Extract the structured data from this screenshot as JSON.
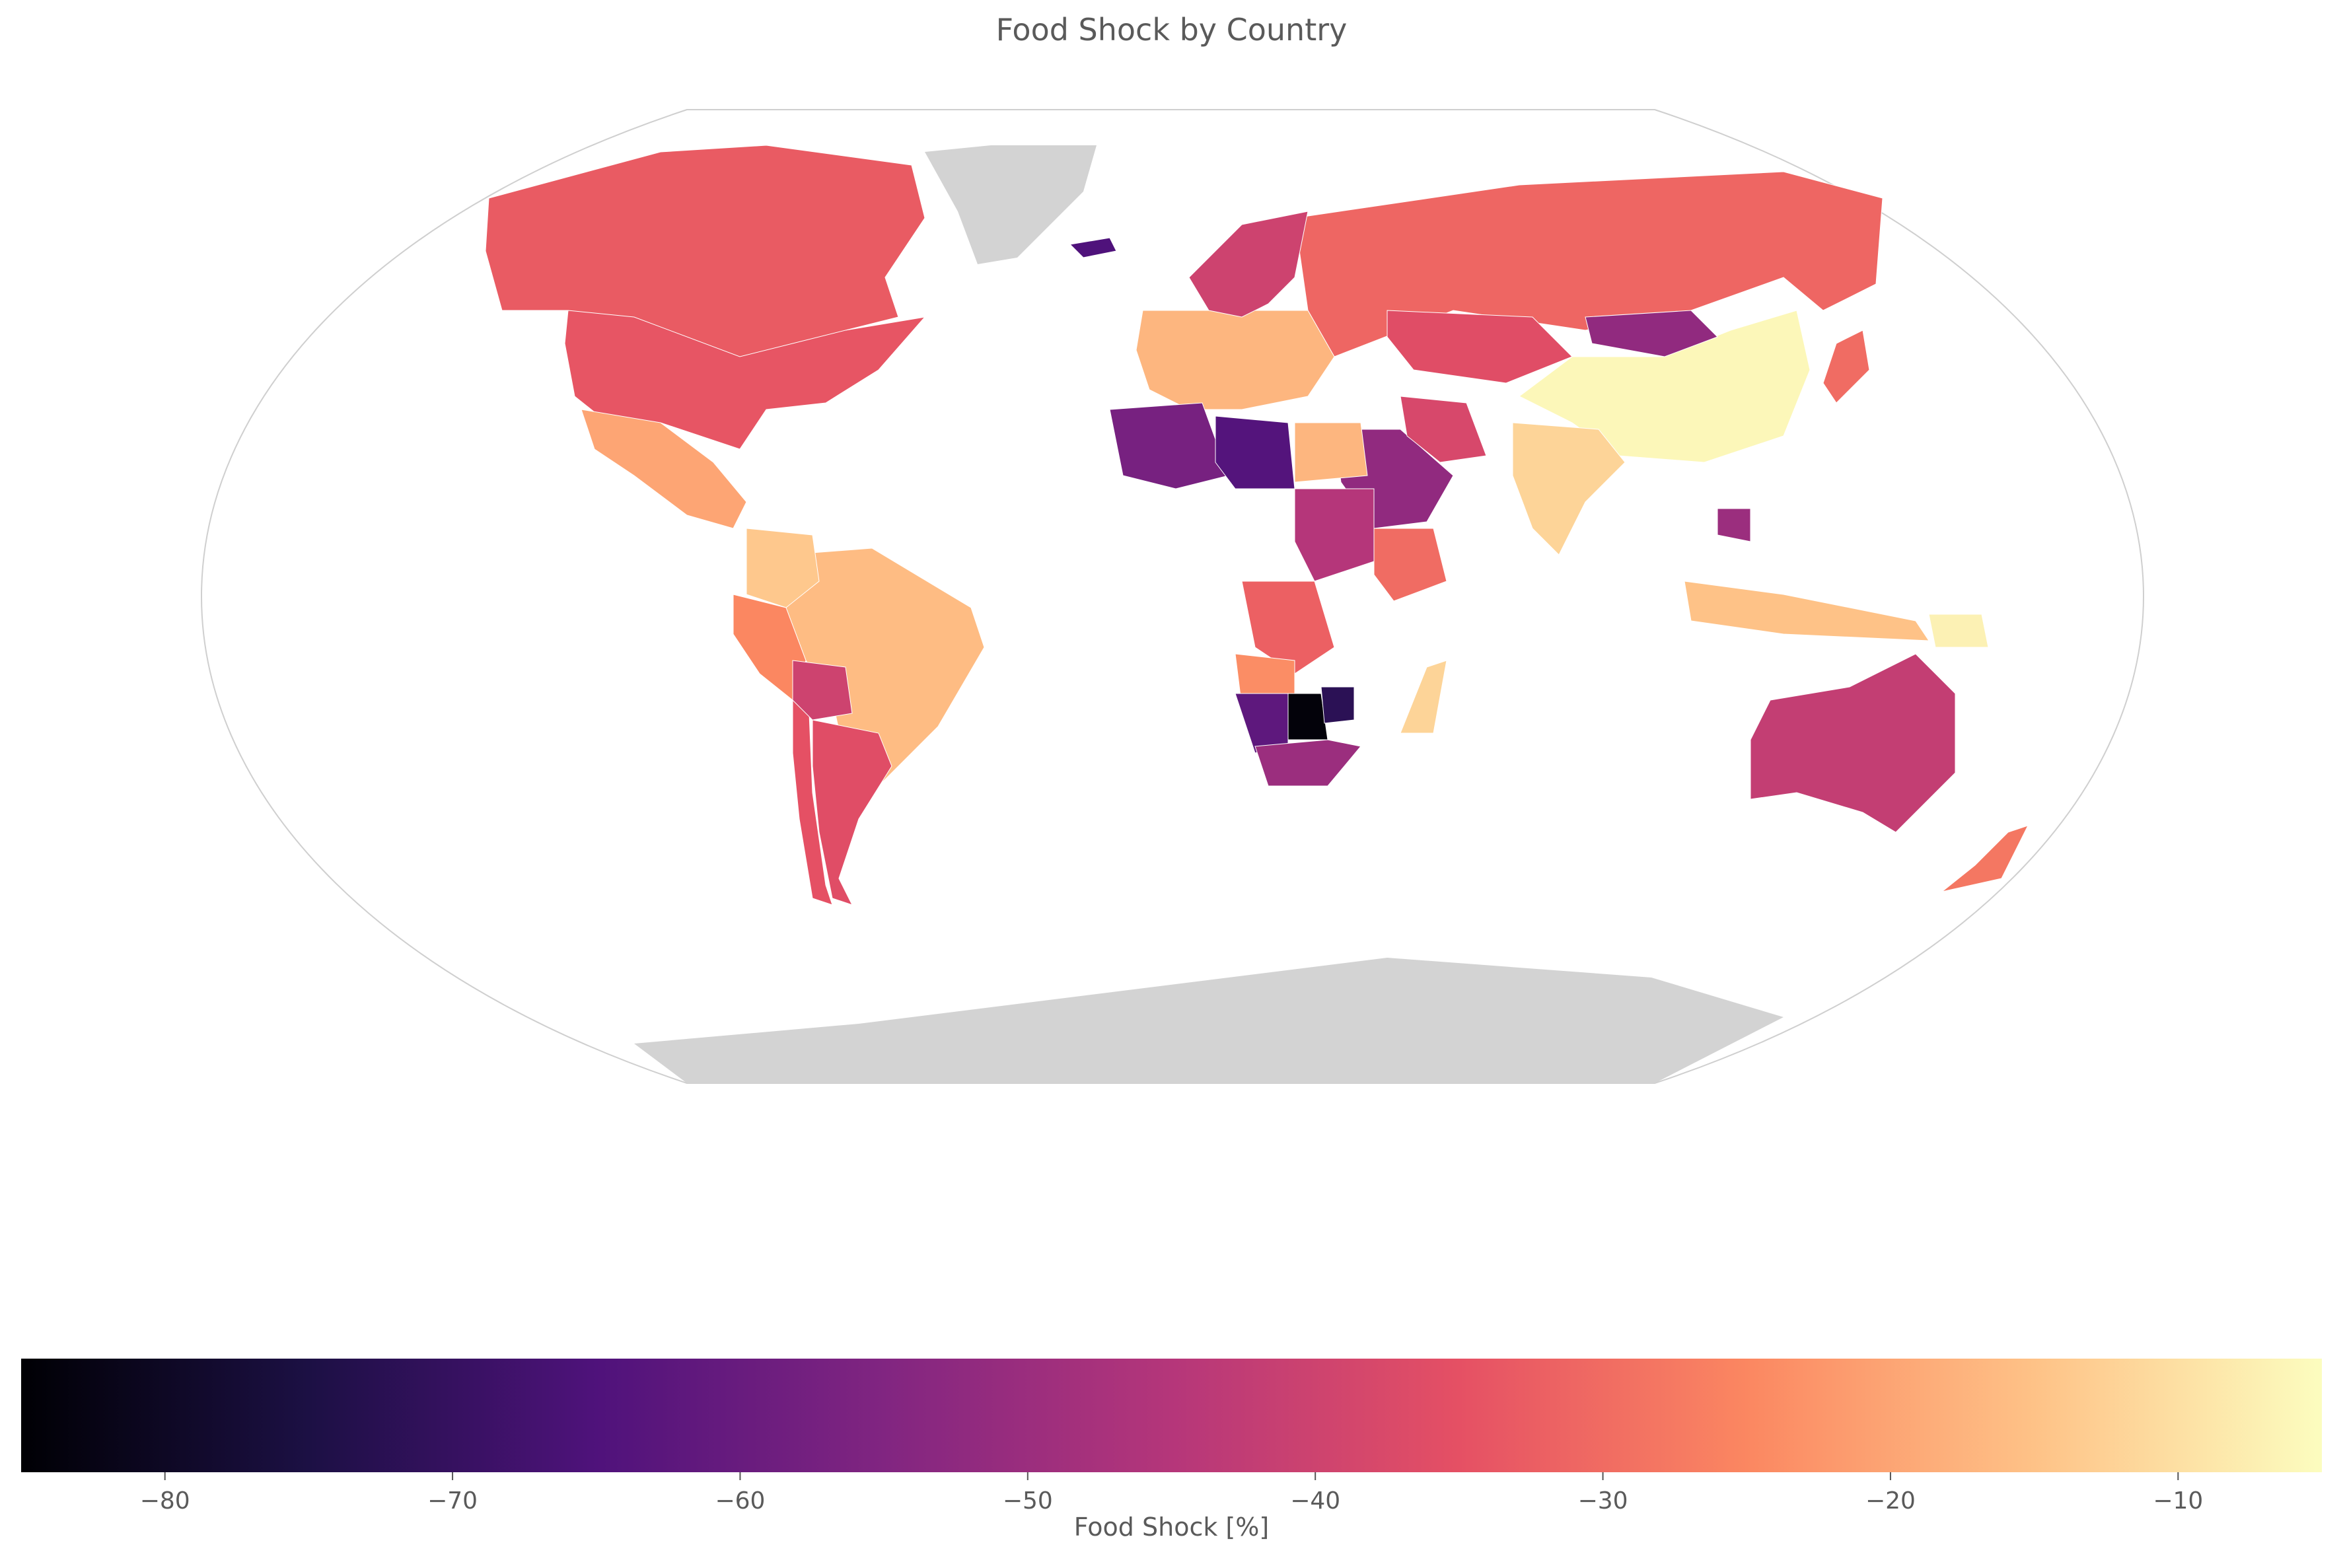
{
  "title": "Food Shock by Country",
  "colorbar": {
    "label": "Food Shock [%]",
    "min": -85,
    "max": -5,
    "ticks": [
      -80,
      -70,
      -60,
      -50,
      -40,
      -30,
      -20,
      -10
    ],
    "tick_labels": [
      "−80",
      "−70",
      "−60",
      "−50",
      "−40",
      "−30",
      "−20",
      "−10"
    ],
    "colormap": "magma",
    "stops": [
      "#000004",
      "#1c1044",
      "#4f127b",
      "#812581",
      "#b5367a",
      "#e55064",
      "#fb8761",
      "#fec287",
      "#fcfdbf"
    ]
  },
  "no_data_color": "#d3d3d3",
  "chart_data": {
    "type": "choropleth",
    "projection": "Robinson",
    "title": "Food Shock by Country",
    "colorbar_label": "Food Shock [%]",
    "value_range": [
      -85,
      -5
    ],
    "no_data_regions": [
      "Greenland",
      "Antarctica"
    ],
    "regions": [
      {
        "name": "United States",
        "value": -34
      },
      {
        "name": "Canada",
        "value": -33
      },
      {
        "name": "Mexico",
        "value": -20
      },
      {
        "name": "Brazil",
        "value": -16
      },
      {
        "name": "Argentina",
        "value": -36
      },
      {
        "name": "Chile",
        "value": -35
      },
      {
        "name": "Peru",
        "value": -25
      },
      {
        "name": "Colombia",
        "value": -14
      },
      {
        "name": "Bolivia",
        "value": -40
      },
      {
        "name": "Russia",
        "value": -31
      },
      {
        "name": "China",
        "value": -6
      },
      {
        "name": "Mongolia",
        "value": -52
      },
      {
        "name": "India",
        "value": -12
      },
      {
        "name": "Kazakhstan",
        "value": -36
      },
      {
        "name": "Europe (central)",
        "value": -17
      },
      {
        "name": "Scandinavia",
        "value": -40
      },
      {
        "name": "Iceland",
        "value": -65
      },
      {
        "name": "Saudi Arabia",
        "value": -52
      },
      {
        "name": "Iran",
        "value": -38
      },
      {
        "name": "Algeria",
        "value": -57
      },
      {
        "name": "Libya",
        "value": -64
      },
      {
        "name": "Egypt",
        "value": -17
      },
      {
        "name": "Sudan",
        "value": -45
      },
      {
        "name": "Ethiopia",
        "value": -30
      },
      {
        "name": "DR Congo",
        "value": -32
      },
      {
        "name": "Angola",
        "value": -24
      },
      {
        "name": "Namibia",
        "value": -62
      },
      {
        "name": "Botswana",
        "value": -84
      },
      {
        "name": "Zimbabwe",
        "value": -72
      },
      {
        "name": "South Africa",
        "value": -50
      },
      {
        "name": "Madagascar",
        "value": -12
      },
      {
        "name": "Indonesia",
        "value": -15
      },
      {
        "name": "Papua New Guinea",
        "value": -7
      },
      {
        "name": "Australia",
        "value": -42
      },
      {
        "name": "New Zealand",
        "value": -28
      },
      {
        "name": "Japan",
        "value": -30
      },
      {
        "name": "Cambodia",
        "value": -50
      }
    ]
  }
}
